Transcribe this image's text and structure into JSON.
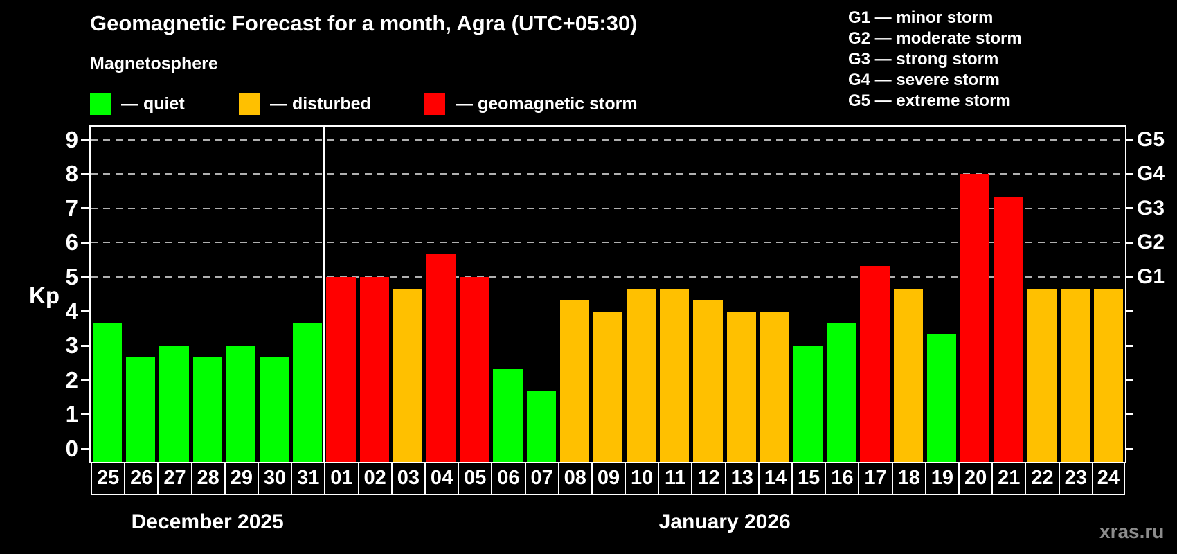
{
  "header": {
    "title": "Geomagnetic Forecast for a month, Agra (UTC+05:30)",
    "subtitle": "Magnetosphere"
  },
  "legend": {
    "items": [
      {
        "key": "quiet",
        "label": "— quiet",
        "color": "#00ff00"
      },
      {
        "key": "disturbed",
        "label": "— disturbed",
        "color": "#ffc000"
      },
      {
        "key": "storm",
        "label": "— geomagnetic storm",
        "color": "#ff0000"
      }
    ]
  },
  "g_scale_legend": [
    "G1 — minor storm",
    "G2 — moderate storm",
    "G3 — strong storm",
    "G4 — severe storm",
    "G5 — extreme storm"
  ],
  "watermark": "xras.ru",
  "chart_data": {
    "type": "bar",
    "title": "Geomagnetic Forecast for a month, Agra (UTC+05:30)",
    "ylabel": "Kp",
    "ylim": [
      -0.4,
      9.4
    ],
    "yticks": [
      0,
      1,
      2,
      3,
      4,
      5,
      6,
      7,
      8,
      9
    ],
    "gridlines_at": [
      5,
      6,
      7,
      8,
      9
    ],
    "grid": true,
    "right_axis_labels": [
      {
        "kp": 5,
        "label": "G1"
      },
      {
        "kp": 6,
        "label": "G2"
      },
      {
        "kp": 7,
        "label": "G3"
      },
      {
        "kp": 8,
        "label": "G4"
      },
      {
        "kp": 9,
        "label": "G5"
      }
    ],
    "months": [
      {
        "label": "December 2025",
        "days": 7
      },
      {
        "label": "January 2026",
        "days": 24
      }
    ],
    "categories": [
      "25",
      "26",
      "27",
      "28",
      "29",
      "30",
      "31",
      "01",
      "02",
      "03",
      "04",
      "05",
      "06",
      "07",
      "08",
      "09",
      "10",
      "11",
      "12",
      "13",
      "14",
      "15",
      "16",
      "17",
      "18",
      "19",
      "20",
      "21",
      "22",
      "23",
      "24"
    ],
    "values": [
      3.67,
      2.67,
      3.0,
      2.67,
      3.0,
      2.67,
      3.67,
      5.0,
      5.0,
      4.67,
      5.67,
      5.0,
      2.33,
      1.67,
      4.33,
      4.0,
      4.67,
      4.67,
      4.33,
      4.0,
      4.0,
      3.0,
      3.67,
      5.33,
      4.67,
      3.33,
      8.0,
      7.33,
      4.67,
      4.67,
      4.67
    ],
    "statuses": [
      "quiet",
      "quiet",
      "quiet",
      "quiet",
      "quiet",
      "quiet",
      "quiet",
      "storm",
      "storm",
      "disturbed",
      "storm",
      "storm",
      "quiet",
      "quiet",
      "disturbed",
      "disturbed",
      "disturbed",
      "disturbed",
      "disturbed",
      "disturbed",
      "disturbed",
      "quiet",
      "quiet",
      "storm",
      "disturbed",
      "quiet",
      "storm",
      "storm",
      "disturbed",
      "disturbed",
      "disturbed"
    ],
    "status_colors": {
      "quiet": "#00ff00",
      "disturbed": "#ffc000",
      "storm": "#ff0000"
    }
  }
}
